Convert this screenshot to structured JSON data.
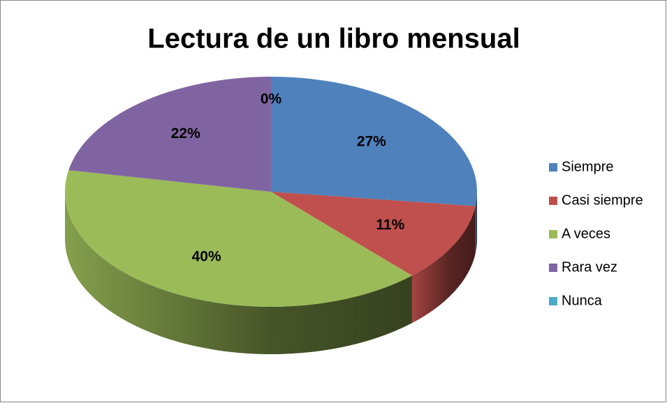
{
  "chart_data": {
    "type": "pie",
    "title": "Lectura de un libro mensual",
    "categories": [
      "Siempre",
      "Casi siempre",
      "A veces",
      "Rara vez",
      "Nunca"
    ],
    "values": [
      27,
      11,
      40,
      22,
      0
    ],
    "value_labels": [
      "27%",
      "11%",
      "40%",
      "22%",
      "0%"
    ],
    "colors": [
      "#4f81bd",
      "#c0504d",
      "#9bbb59",
      "#8064a2",
      "#4bacc6"
    ],
    "legend": "right"
  }
}
